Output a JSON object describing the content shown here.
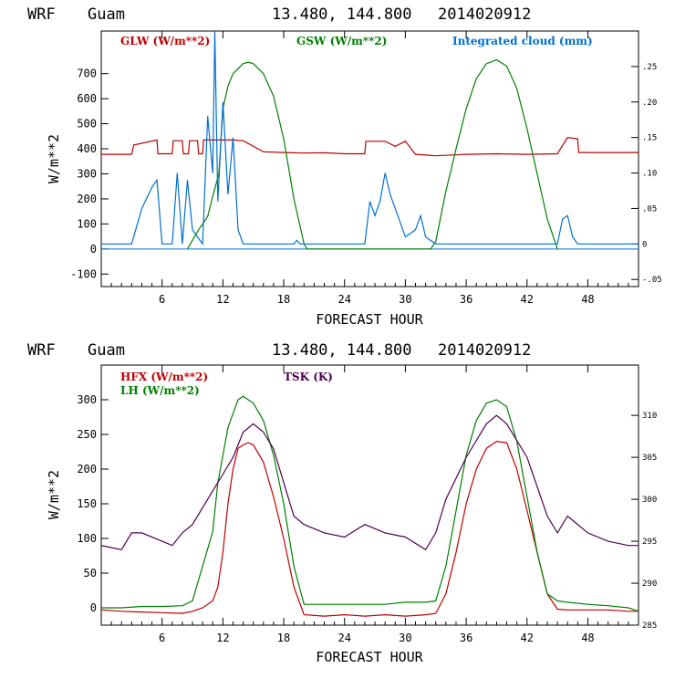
{
  "chart_data": [
    {
      "type": "line",
      "model": "WRF",
      "location": "Guam",
      "coords": "13.480, 144.800",
      "init_time": "2014020912",
      "xlabel": "FORECAST HOUR",
      "ylabel": "W/m**2",
      "xlim": [
        0,
        53
      ],
      "ylim": [
        -150,
        870
      ],
      "x_ticks": [
        "6",
        "12",
        "18",
        "24",
        "30",
        "36",
        "42",
        "48"
      ],
      "y_ticks": [
        "-100",
        "0",
        "100",
        "200",
        "300",
        "400",
        "500",
        "600",
        "700"
      ],
      "y2lim": [
        -0.06,
        0.3
      ],
      "y2_ticks": [
        "-.05",
        "0",
        ".05",
        ".10",
        ".15",
        ".20",
        ".25"
      ],
      "series": [
        {
          "name": "GLW (W/m**2)",
          "label": "GLW (W/m**2)",
          "color": "#c00000",
          "axis": "left",
          "x": [
            0,
            3,
            3.2,
            5.5,
            5.6,
            7,
            7.1,
            8,
            8.1,
            8.6,
            8.7,
            9.5,
            9.6,
            10,
            10.1,
            12,
            13,
            14,
            16,
            18,
            20,
            22,
            24,
            26,
            26.1,
            28,
            29,
            30,
            31,
            31.1,
            32,
            33,
            36,
            39,
            42,
            45,
            46,
            47,
            47.1,
            53
          ],
          "y": [
            378,
            378,
            415,
            435,
            380,
            380,
            432,
            432,
            380,
            380,
            432,
            432,
            380,
            380,
            435,
            435,
            435,
            432,
            388,
            385,
            383,
            384,
            380,
            380,
            430,
            430,
            410,
            430,
            378,
            378,
            375,
            372,
            378,
            380,
            378,
            380,
            445,
            440,
            385,
            385
          ]
        },
        {
          "name": "GSW (W/m**2)",
          "label": "GSW (W/m**2)",
          "color": "#008000",
          "axis": "left",
          "x": [
            8.5,
            9.5,
            10.5,
            11,
            11.6,
            12,
            12.5,
            13,
            13.5,
            14,
            14.5,
            15,
            16,
            17,
            18,
            19,
            20,
            20.3,
            32.5,
            33,
            34,
            35,
            36,
            37,
            38,
            39,
            40,
            41,
            42,
            43,
            44,
            45
          ],
          "y": [
            0,
            70,
            130,
            210,
            300,
            560,
            650,
            700,
            720,
            740,
            745,
            740,
            700,
            610,
            440,
            200,
            20,
            0,
            0,
            30,
            230,
            400,
            560,
            680,
            740,
            755,
            730,
            640,
            480,
            300,
            120,
            0
          ]
        },
        {
          "name": "Integrated cloud (mm)",
          "label": "Integrated cloud (mm)",
          "color": "#0070d0",
          "axis": "right",
          "x": [
            0,
            3,
            4,
            5,
            5.5,
            6,
            7,
            7.5,
            8,
            8.5,
            9,
            10,
            10.5,
            11,
            11.2,
            11.5,
            12,
            12.5,
            13,
            13.5,
            14,
            19,
            19.3,
            19.6,
            26,
            26.5,
            27,
            27.5,
            28,
            28.5,
            29,
            30,
            31,
            31.5,
            32,
            33,
            45,
            45.5,
            46,
            46.5,
            47,
            53
          ],
          "x_note": "hours",
          "y": [
            0,
            0,
            0.05,
            0.08,
            0.09,
            0,
            0,
            0.1,
            0,
            0.09,
            0.02,
            0,
            0.18,
            0.1,
            0.3,
            0.06,
            0.2,
            0.07,
            0.15,
            0.02,
            0,
            0,
            0.005,
            0,
            0,
            0.06,
            0.04,
            0.06,
            0.1,
            0.07,
            0.05,
            0.01,
            0.02,
            0.04,
            0.01,
            0,
            0,
            0.035,
            0.04,
            0.01,
            0,
            0
          ]
        }
      ]
    },
    {
      "type": "line",
      "model": "WRF",
      "location": "Guam",
      "coords": "13.480, 144.800",
      "init_time": "2014020912",
      "xlabel": "FORECAST HOUR",
      "ylabel": "W/m**2",
      "xlim": [
        0,
        53
      ],
      "ylim": [
        -25,
        350
      ],
      "x_ticks": [
        "6",
        "12",
        "18",
        "24",
        "30",
        "36",
        "42",
        "48"
      ],
      "y_ticks": [
        "0",
        "50",
        "100",
        "150",
        "200",
        "250",
        "300"
      ],
      "y2lim": [
        285,
        316
      ],
      "y2_ticks": [
        "285",
        "290",
        "295",
        "300",
        "305",
        "310"
      ],
      "series": [
        {
          "name": "HFX (W/m**2)",
          "label": "HFX (W/m**2)",
          "color": "#c00000",
          "axis": "left",
          "x": [
            0,
            2,
            4,
            6,
            8,
            9,
            10,
            11,
            11.5,
            12,
            12.5,
            13,
            13.5,
            14,
            14.5,
            15,
            16,
            17,
            18,
            19,
            20,
            22,
            24,
            26,
            28,
            30,
            32,
            33,
            34,
            35,
            36,
            37,
            38,
            39,
            40,
            41,
            42,
            43,
            44,
            45,
            46,
            48,
            50,
            52,
            53
          ],
          "y": [
            -3,
            -5,
            -6,
            -7,
            -8,
            -5,
            0,
            10,
            30,
            80,
            150,
            200,
            230,
            235,
            238,
            235,
            210,
            160,
            100,
            30,
            -10,
            -12,
            -10,
            -12,
            -10,
            -12,
            -10,
            -8,
            20,
            80,
            150,
            200,
            230,
            240,
            238,
            200,
            140,
            80,
            20,
            -2,
            -3,
            -3,
            -3,
            -5,
            -5
          ]
        },
        {
          "name": "LH (W/m**2)",
          "label": "LH (W/m**2)",
          "color": "#008000",
          "axis": "left",
          "x": [
            0,
            2,
            4,
            6,
            8,
            9,
            10,
            11,
            11.5,
            12,
            12.5,
            13,
            13.5,
            14,
            14.5,
            15,
            16,
            17,
            18,
            19,
            20,
            22,
            24,
            26,
            28,
            30,
            32,
            33,
            34,
            35,
            36,
            37,
            38,
            39,
            40,
            41,
            42,
            43,
            44,
            45,
            46,
            48,
            50,
            52,
            53
          ],
          "y": [
            0,
            0,
            2,
            2,
            3,
            10,
            60,
            110,
            180,
            220,
            260,
            280,
            300,
            305,
            300,
            295,
            270,
            220,
            150,
            60,
            5,
            5,
            5,
            5,
            5,
            8,
            8,
            10,
            60,
            140,
            220,
            270,
            295,
            300,
            290,
            240,
            160,
            80,
            20,
            10,
            8,
            5,
            3,
            0,
            -5
          ]
        },
        {
          "name": "TSK (K)",
          "label": "TSK (K)",
          "color": "#500050",
          "axis": "right",
          "x": [
            0,
            2,
            3,
            4,
            6,
            7,
            8,
            9,
            10,
            11,
            12,
            13,
            14,
            15,
            16,
            17,
            18,
            19,
            20,
            22,
            24,
            26,
            28,
            30,
            32,
            33,
            34,
            36,
            38,
            39,
            40,
            42,
            44,
            45,
            46,
            48,
            50,
            52,
            53
          ],
          "y": [
            294.5,
            294,
            296,
            296,
            295,
            294.5,
            296,
            297,
            299,
            301,
            303,
            305,
            308,
            309,
            308,
            306,
            302,
            298,
            297,
            296,
            295.5,
            297,
            296,
            295.5,
            294,
            296,
            300,
            305,
            309,
            310,
            309,
            305,
            298,
            296,
            298,
            296,
            295,
            294.5,
            294.5
          ]
        }
      ]
    }
  ]
}
